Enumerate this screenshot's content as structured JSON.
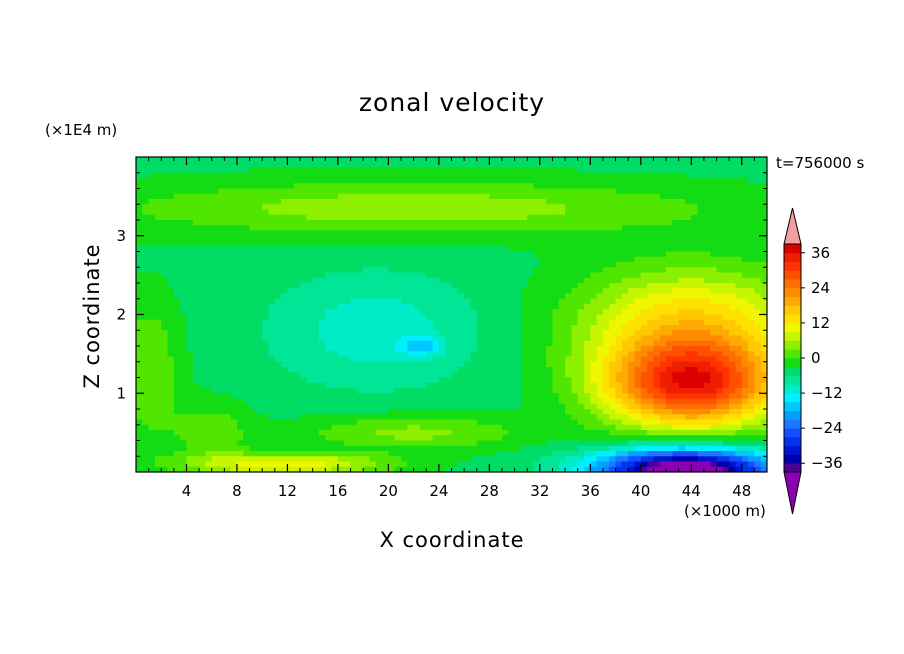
{
  "chart_data": {
    "type": "heatmap",
    "title": "zonal velocity",
    "xlabel": "X coordinate",
    "ylabel": "Z coordinate",
    "x_unit_label": "(×1000 m)",
    "y_unit_label": "(×1E4 m)",
    "time_label": "t=756000 s",
    "xlim": [
      0,
      50
    ],
    "ylim": [
      0,
      4
    ],
    "x_ticks": [
      4,
      8,
      12,
      16,
      20,
      24,
      28,
      32,
      36,
      40,
      44,
      48
    ],
    "x_tick_labels": [
      "4",
      "8",
      "12",
      "16",
      "20",
      "24",
      "28",
      "32",
      "36",
      "40",
      "44",
      "48"
    ],
    "y_ticks": [
      1,
      2,
      3
    ],
    "y_tick_labels": [
      "1",
      "2",
      "3"
    ],
    "colorbar": {
      "levels": [
        -42,
        -39,
        -36,
        -33,
        -30,
        -27,
        -24,
        -21,
        -18,
        -15,
        -12,
        -9,
        -6,
        -3,
        0,
        3,
        6,
        9,
        12,
        15,
        18,
        21,
        24,
        27,
        30,
        33,
        36,
        39,
        42
      ],
      "tick_values": [
        36,
        24,
        12,
        0,
        -12,
        -24,
        -36
      ],
      "tick_labels": [
        "36",
        "24",
        "12",
        "0",
        "−12",
        "−24",
        "−36"
      ],
      "extend": "both",
      "colors": [
        "#8c00b4",
        "#4b0096",
        "#0000aa",
        "#0014d2",
        "#0032f0",
        "#1450ff",
        "#1e78ff",
        "#00a0ff",
        "#00c8ff",
        "#00f0ff",
        "#00ebc8",
        "#00e696",
        "#00dc64",
        "#14dc14",
        "#50e600",
        "#8cf000",
        "#c8f500",
        "#f0f500",
        "#ffe100",
        "#ffc800",
        "#ffaa00",
        "#ff8c00",
        "#ff6e00",
        "#ff5000",
        "#ff3200",
        "#f01e00",
        "#dc0000",
        "#f0a0a0"
      ]
    },
    "features": [
      {
        "name": "positive jet core",
        "x": 44,
        "z": 1.1,
        "value": 30
      },
      {
        "name": "negative low-level core",
        "x": 44,
        "z": 0.1,
        "value": -36
      },
      {
        "name": "mid-level negative region",
        "x": 19,
        "z": 1.8,
        "value": -12
      },
      {
        "name": "mid-level minimum",
        "x": 22.5,
        "z": 1.6,
        "value": -18
      },
      {
        "name": "upper positive band",
        "x": 25,
        "z": 3.3,
        "value": 3
      },
      {
        "name": "low-level positive band",
        "x": 12,
        "z": 0.12,
        "value": 14
      }
    ]
  }
}
